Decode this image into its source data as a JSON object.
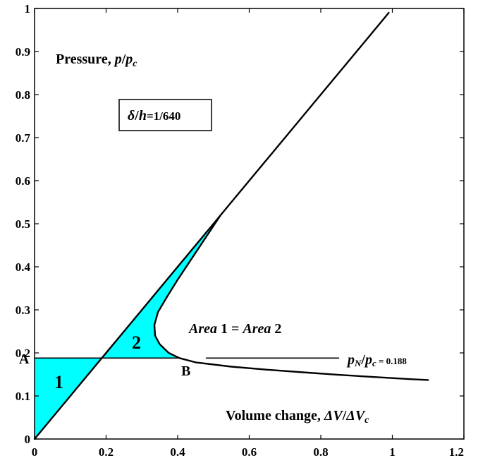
{
  "chart_data": {
    "type": "line",
    "xlim": [
      0,
      1.2
    ],
    "ylim": [
      0,
      1
    ],
    "x_ticks": [
      "0",
      "0.2",
      "0.4",
      "0.6",
      "0.8",
      "1",
      "1.2"
    ],
    "y_ticks": [
      "0",
      "0.1",
      "0.2",
      "0.3",
      "0.4",
      "0.5",
      "0.6",
      "0.7",
      "0.8",
      "0.9",
      "1"
    ],
    "grid": false,
    "ylabel_parts": {
      "prefix": "Pressure, ",
      "p": "p",
      "slash": "/",
      "pc": "p",
      "c": "c"
    },
    "xlabel_parts": {
      "prefix": "Volume change, ",
      "dv": "ΔV",
      "slash": "/",
      "dvc": "ΔV",
      "c": "c"
    },
    "box_label": {
      "delta": "δ",
      "slash": "/",
      "h": "h",
      "value": "=1/640"
    },
    "area_note": {
      "a1": "Area",
      "n1": " 1 = ",
      "a2": "Area",
      "n2": " 2"
    },
    "pn_note": {
      "p": "p",
      "n": "N",
      "slash": "/",
      "p2": "p",
      "c": "c",
      "value": " = 0.188"
    },
    "point_labels": {
      "A": "A",
      "B": "B"
    },
    "region_labels": {
      "r1": "1",
      "r2": "2"
    },
    "fill_color": "#00ffff",
    "line_color": "#000000",
    "pn_level": 0.188,
    "series": [
      {
        "points": [
          [
            0,
            0
          ],
          [
            0.1,
            0.1
          ],
          [
            0.188,
            0.188
          ],
          [
            0.25,
            0.25
          ],
          [
            0.3,
            0.3
          ],
          [
            0.35,
            0.35
          ],
          [
            0.4,
            0.4
          ],
          [
            0.45,
            0.45
          ],
          [
            0.5,
            0.5
          ],
          [
            0.55,
            0.55
          ],
          [
            0.6,
            0.6
          ],
          [
            0.7,
            0.7
          ],
          [
            0.8,
            0.8
          ],
          [
            0.9,
            0.9
          ],
          [
            0.99,
            0.99
          ]
        ]
      },
      {
        "points": [
          [
            0.52,
            0.52
          ],
          [
            0.48,
            0.47
          ],
          [
            0.44,
            0.42
          ],
          [
            0.4,
            0.37
          ],
          [
            0.37,
            0.33
          ],
          [
            0.345,
            0.295
          ],
          [
            0.335,
            0.265
          ],
          [
            0.337,
            0.24
          ],
          [
            0.35,
            0.22
          ],
          [
            0.375,
            0.2
          ],
          [
            0.405,
            0.188
          ],
          [
            0.45,
            0.178
          ],
          [
            0.55,
            0.168
          ],
          [
            0.65,
            0.161
          ],
          [
            0.75,
            0.155
          ],
          [
            0.85,
            0.149
          ],
          [
            0.95,
            0.144
          ],
          [
            1.05,
            0.139
          ],
          [
            1.1,
            0.137
          ]
        ]
      },
      {
        "points": [
          [
            0.48,
            0.188
          ],
          [
            0.85,
            0.188
          ]
        ]
      }
    ],
    "fills": [
      {
        "points": [
          [
            0,
            0
          ],
          [
            0.188,
            0.188
          ],
          [
            0,
            0.188
          ]
        ]
      },
      {
        "points": [
          [
            0.188,
            0.188
          ],
          [
            0.25,
            0.25
          ],
          [
            0.3,
            0.3
          ],
          [
            0.35,
            0.35
          ],
          [
            0.4,
            0.4
          ],
          [
            0.45,
            0.45
          ],
          [
            0.52,
            0.52
          ],
          [
            0.48,
            0.47
          ],
          [
            0.44,
            0.42
          ],
          [
            0.4,
            0.37
          ],
          [
            0.37,
            0.33
          ],
          [
            0.345,
            0.295
          ],
          [
            0.335,
            0.265
          ],
          [
            0.337,
            0.24
          ],
          [
            0.35,
            0.22
          ],
          [
            0.375,
            0.2
          ],
          [
            0.405,
            0.188
          ]
        ]
      }
    ]
  }
}
